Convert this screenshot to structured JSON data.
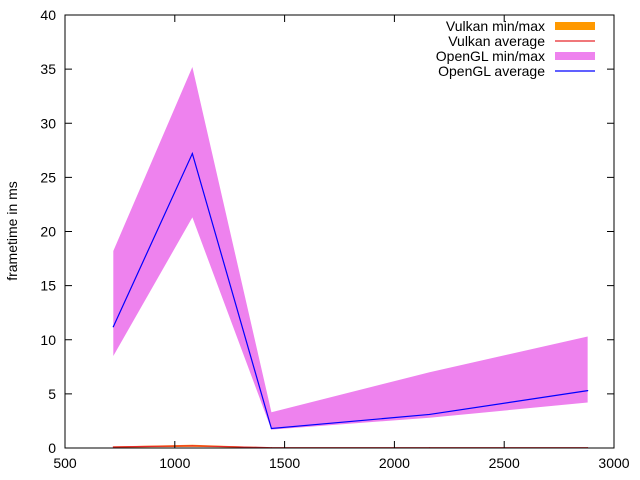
{
  "chart_data": {
    "type": "area",
    "xlabel": "",
    "ylabel": "frametime in ms",
    "xlim": [
      500,
      3000
    ],
    "ylim": [
      0,
      40
    ],
    "xticks": [
      500,
      1000,
      1500,
      2000,
      2500,
      3000
    ],
    "yticks": [
      0,
      5,
      10,
      15,
      20,
      25,
      30,
      35,
      40
    ],
    "grid": false,
    "legend_position": "top-right",
    "x": [
      720,
      1080,
      1440,
      2160,
      2880
    ],
    "series": [
      {
        "name": "Vulkan min/max",
        "kind": "band",
        "color": "#ff9900",
        "min": [
          0.05,
          0.1,
          0.02,
          0.02,
          0.02
        ],
        "max": [
          0.15,
          0.3,
          0.05,
          0.05,
          0.05
        ]
      },
      {
        "name": "Vulkan average",
        "kind": "line",
        "color": "#e8262b",
        "values": [
          0.1,
          0.2,
          0.03,
          0.03,
          0.03
        ]
      },
      {
        "name": "OpenGL min/max",
        "kind": "band",
        "color": "#ee82ee",
        "min": [
          8.5,
          21.3,
          1.7,
          2.8,
          4.2
        ],
        "max": [
          18.2,
          35.2,
          3.3,
          7.0,
          10.3
        ]
      },
      {
        "name": "OpenGL average",
        "kind": "line",
        "color": "#0000ff",
        "values": [
          11.2,
          27.2,
          1.8,
          3.1,
          5.3
        ]
      }
    ]
  }
}
